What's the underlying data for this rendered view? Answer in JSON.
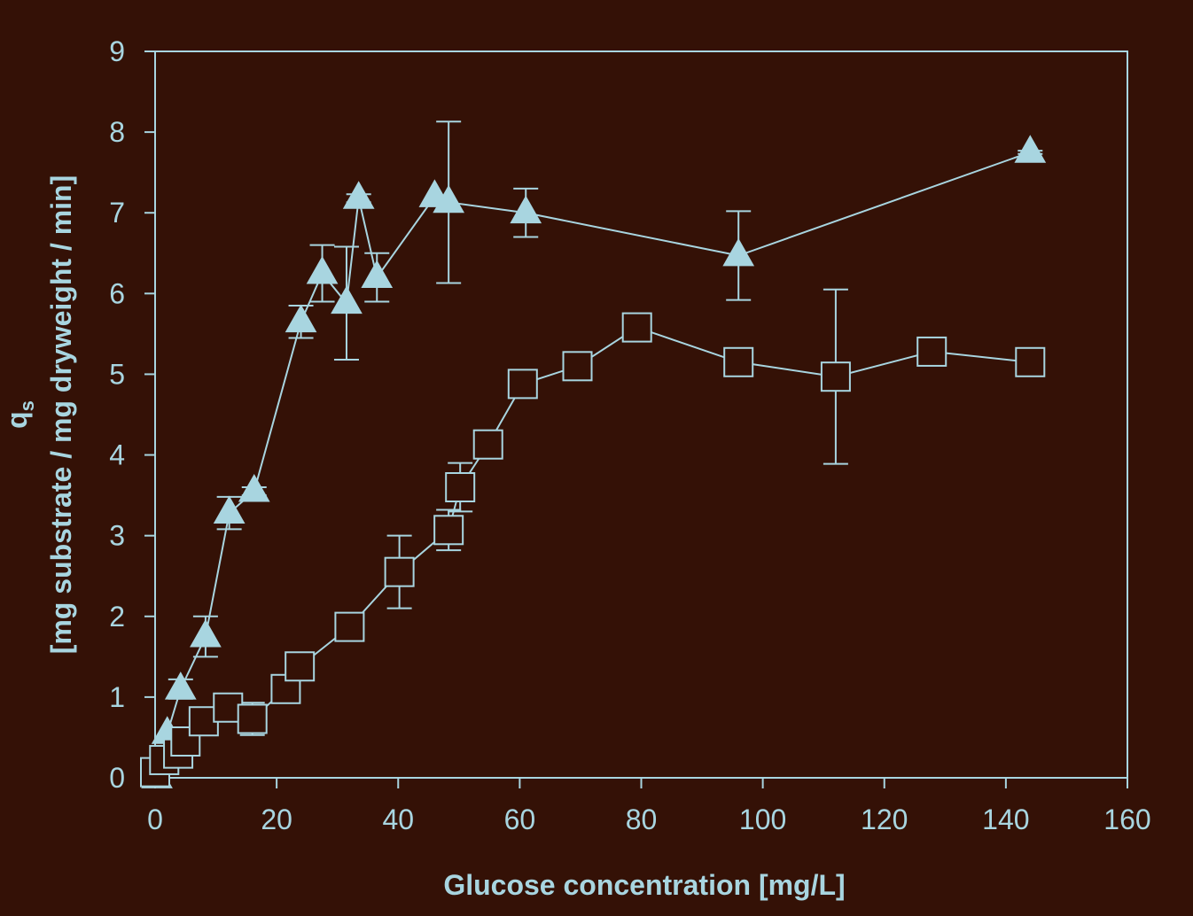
{
  "chart_data": {
    "type": "scatter",
    "xlabel": "Glucose concentration [mg/L]",
    "ylabel": {
      "symbol": "q",
      "subscript": "s",
      "units": "[mg substrate / mg dryweight / min]"
    },
    "xlim": [
      0,
      160
    ],
    "ylim": [
      0,
      9
    ],
    "xticks": [
      0,
      20,
      40,
      60,
      80,
      100,
      120,
      140,
      160
    ],
    "yticks": [
      0,
      1,
      2,
      3,
      4,
      5,
      6,
      7,
      8,
      9
    ],
    "grid": false,
    "legend": "none",
    "colors": {
      "background": "#341106",
      "foreground": "#a8d5e0",
      "square_fill": "#341106"
    },
    "series": [
      {
        "marker": "triangle",
        "points": [
          {
            "x": 0.3,
            "y": 0.0
          },
          {
            "x": 2,
            "y": 0.55
          },
          {
            "x": 4.2,
            "y": 1.1,
            "err": 0.12
          },
          {
            "x": 8.3,
            "y": 1.75,
            "err": 0.25
          },
          {
            "x": 12.2,
            "y": 3.28,
            "err": 0.2
          },
          {
            "x": 16.3,
            "y": 3.55,
            "err": 0.05
          },
          {
            "x": 24,
            "y": 5.65,
            "err": 0.2
          },
          {
            "x": 27.5,
            "y": 6.25,
            "err": 0.35
          },
          {
            "x": 31.5,
            "y": 5.88,
            "err": 0.7
          },
          {
            "x": 33.5,
            "y": 7.18,
            "err": 0.05
          },
          {
            "x": 36.5,
            "y": 6.2,
            "err": 0.3
          },
          {
            "x": 46,
            "y": 7.2
          },
          {
            "x": 48.3,
            "y": 7.13,
            "err": 1.0
          },
          {
            "x": 61,
            "y": 7.0,
            "err": 0.3
          },
          {
            "x": 96,
            "y": 6.47,
            "err": 0.55
          },
          {
            "x": 144,
            "y": 7.75,
            "err": 0.02
          }
        ]
      },
      {
        "marker": "square",
        "points": [
          {
            "x": 0,
            "y": 0.07
          },
          {
            "x": 1.5,
            "y": 0.22
          },
          {
            "x": 3.8,
            "y": 0.3
          },
          {
            "x": 5,
            "y": 0.45
          },
          {
            "x": 8,
            "y": 0.7
          },
          {
            "x": 12,
            "y": 0.87
          },
          {
            "x": 16,
            "y": 0.73,
            "err": 0.2
          },
          {
            "x": 21.5,
            "y": 1.1
          },
          {
            "x": 23.8,
            "y": 1.38
          },
          {
            "x": 32,
            "y": 1.87
          },
          {
            "x": 40.2,
            "y": 2.55,
            "err": 0.45
          },
          {
            "x": 48.3,
            "y": 3.07,
            "err": 0.25
          },
          {
            "x": 50.2,
            "y": 3.6,
            "err": 0.3
          },
          {
            "x": 54.8,
            "y": 4.13
          },
          {
            "x": 60.5,
            "y": 4.88
          },
          {
            "x": 69.5,
            "y": 5.1
          },
          {
            "x": 79.3,
            "y": 5.58
          },
          {
            "x": 96,
            "y": 5.15
          },
          {
            "x": 112,
            "y": 4.97,
            "err": 1.08
          },
          {
            "x": 127.8,
            "y": 5.28
          },
          {
            "x": 144,
            "y": 5.15
          }
        ]
      }
    ]
  }
}
